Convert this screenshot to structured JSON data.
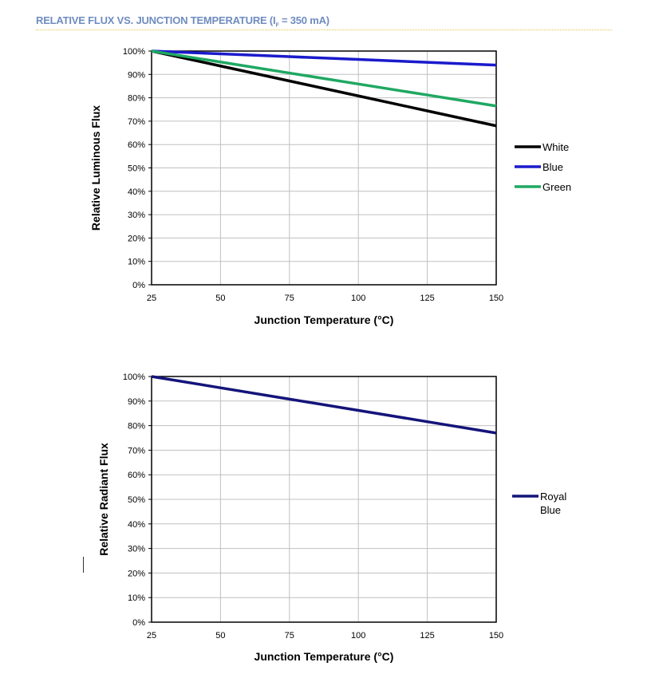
{
  "header": {
    "title_prefix": "RELATIVE FLUX VS. JUNCTION TEMPERATURE (I",
    "title_sub": "F",
    "title_suffix": " = 350 mA)"
  },
  "colors": {
    "title": "#6f8cc0",
    "white": "#000000",
    "blue": "#1a1acc",
    "green": "#1fa862",
    "royal_blue": "#14147a",
    "grid": "#c0c0c0"
  },
  "chart_data": [
    {
      "type": "line",
      "title": "",
      "xlabel": "Junction Temperature (°C)",
      "ylabel": "Relative Luminous Flux",
      "x": [
        25,
        50,
        75,
        100,
        125,
        150
      ],
      "xlim": [
        25,
        150
      ],
      "ylim": [
        0,
        100
      ],
      "xticks": [
        "25",
        "50",
        "75",
        "100",
        "125",
        "150"
      ],
      "yticks": [
        "0%",
        "10%",
        "20%",
        "30%",
        "40%",
        "50%",
        "60%",
        "70%",
        "80%",
        "90%",
        "100%"
      ],
      "grid": true,
      "legend": "right",
      "series": [
        {
          "name": "White",
          "color": "#000000",
          "values": [
            100,
            93.6,
            87.2,
            80.8,
            74.4,
            68
          ]
        },
        {
          "name": "Blue",
          "color": "#1a1acc",
          "values": [
            100,
            98.8,
            97.6,
            96.4,
            95.2,
            94
          ]
        },
        {
          "name": "Green",
          "color": "#1fa862",
          "values": [
            100,
            95.3,
            90.6,
            85.9,
            81.2,
            76.5
          ]
        }
      ]
    },
    {
      "type": "line",
      "title": "",
      "xlabel": "Junction Temperature (°C)",
      "ylabel": "Relative Radiant Flux",
      "x": [
        25,
        50,
        75,
        100,
        125,
        150
      ],
      "xlim": [
        25,
        150
      ],
      "ylim": [
        0,
        100
      ],
      "xticks": [
        "25",
        "50",
        "75",
        "100",
        "125",
        "150"
      ],
      "yticks": [
        "0%",
        "10%",
        "20%",
        "30%",
        "40%",
        "50%",
        "60%",
        "70%",
        "80%",
        "90%",
        "100%"
      ],
      "grid": true,
      "legend": "right",
      "series": [
        {
          "name": "Royal Blue",
          "legend_lines": [
            "Royal",
            "Blue"
          ],
          "color": "#14147a",
          "values": [
            100,
            95.4,
            90.8,
            86.2,
            81.6,
            77
          ]
        }
      ]
    }
  ]
}
